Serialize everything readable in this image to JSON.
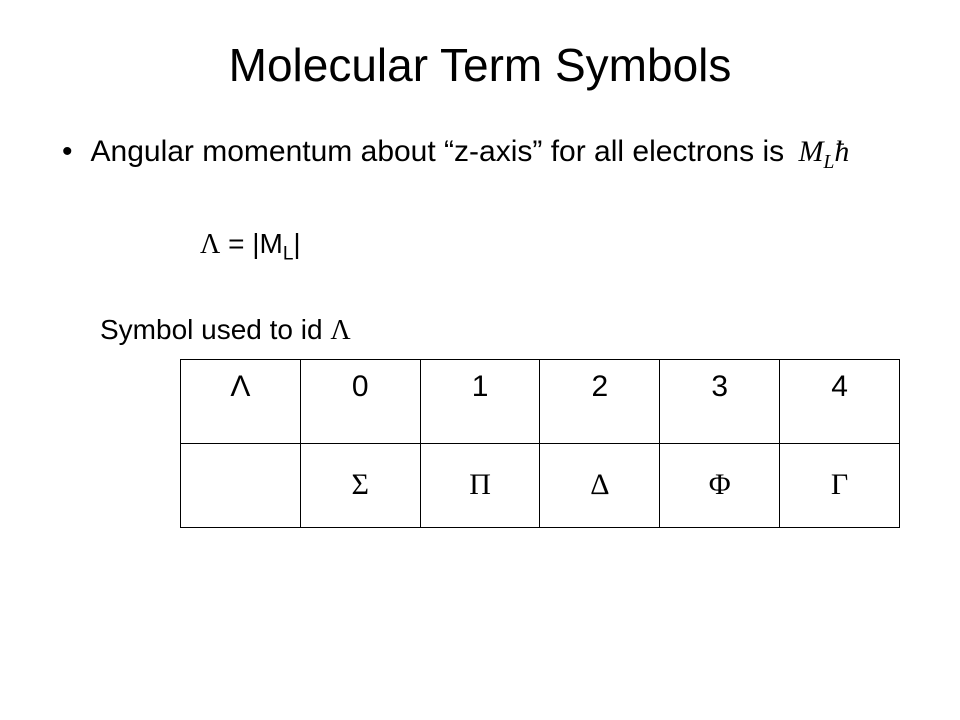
{
  "title": "Molecular Term Symbols",
  "bullet": {
    "text_prefix": "Angular momentum about “z-axis” for all electrons is",
    "ml_expr": "M",
    "ml_sub": "L",
    "hbar": "ħ"
  },
  "lambda_eq": {
    "lambda": "Λ",
    "eq": " = |M",
    "sub": "L",
    "close": "|"
  },
  "caption": {
    "prefix": "Symbol used to id ",
    "lambda": "Λ"
  },
  "table": {
    "row1": {
      "head": "Λ",
      "c1": "0",
      "c2": "1",
      "c3": "2",
      "c4": "3",
      "c5": "4"
    },
    "row2": {
      "head": "",
      "c1": "Σ",
      "c2": "Π",
      "c3": "Δ",
      "c4": "Φ",
      "c5": "Γ"
    }
  },
  "style": {
    "background_color": "#ffffff",
    "text_color": "#000000",
    "border_color": "#000000",
    "title_fontsize": 46,
    "body_fontsize": 30,
    "table_cell_height": 84,
    "table_border_width": 1.5
  }
}
